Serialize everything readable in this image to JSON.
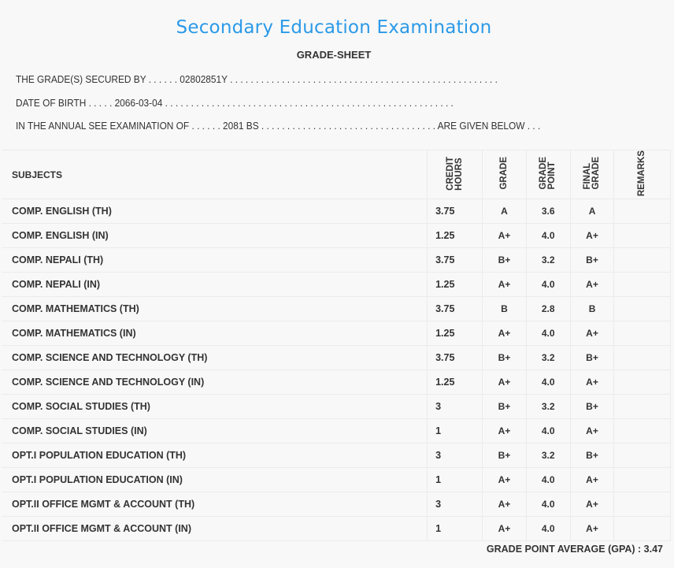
{
  "header": {
    "title": "Secondary Education Examination",
    "subtitle": "GRADE-SHEET"
  },
  "info": {
    "secured_by": "THE GRADE(S) SECURED BY . . . . . . 02802851Y . . . . . . . . . . . . . . . . . . . . . . . . . . . . . . . . . . . . . . . . . . . . . . . . . . . .",
    "dob": "DATE OF BIRTH . . . . . 2066-03-04 . . . . . . . . . . . . . . . . . . . . . . . . . . . . . . . . . . . . . . . . . . . . . . . . . . . . . . . .",
    "exam": "IN THE ANNUAL SEE EXAMINATION OF . . . . . . 2081 BS . . . . . . . . . . . . . . . . . . . . . . . . . . . . . . . . . . ARE GIVEN BELOW . . ."
  },
  "table": {
    "headers": {
      "subjects": "SUBJECTS",
      "credit_hours": "CREDIT\nHOURS",
      "grade": "GRADE",
      "grade_point": "GRADE\nPOINT",
      "final_grade": "FINAL\nGRADE",
      "remarks": "REMARKS"
    },
    "rows": [
      {
        "subject": "COMP. ENGLISH (TH)",
        "credit": "3.75",
        "grade": "A",
        "point": "3.6",
        "final": "A",
        "remarks": ""
      },
      {
        "subject": "COMP. ENGLISH (IN)",
        "credit": "1.25",
        "grade": "A+",
        "point": "4.0",
        "final": "A+",
        "remarks": ""
      },
      {
        "subject": "COMP. NEPALI (TH)",
        "credit": "3.75",
        "grade": "B+",
        "point": "3.2",
        "final": "B+",
        "remarks": ""
      },
      {
        "subject": "COMP. NEPALI (IN)",
        "credit": "1.25",
        "grade": "A+",
        "point": "4.0",
        "final": "A+",
        "remarks": ""
      },
      {
        "subject": "COMP. MATHEMATICS (TH)",
        "credit": "3.75",
        "grade": "B",
        "point": "2.8",
        "final": "B",
        "remarks": ""
      },
      {
        "subject": "COMP. MATHEMATICS (IN)",
        "credit": "1.25",
        "grade": "A+",
        "point": "4.0",
        "final": "A+",
        "remarks": ""
      },
      {
        "subject": "COMP. SCIENCE AND TECHNOLOGY (TH)",
        "credit": "3.75",
        "grade": "B+",
        "point": "3.2",
        "final": "B+",
        "remarks": ""
      },
      {
        "subject": "COMP. SCIENCE AND TECHNOLOGY (IN)",
        "credit": "1.25",
        "grade": "A+",
        "point": "4.0",
        "final": "A+",
        "remarks": ""
      },
      {
        "subject": "COMP. SOCIAL STUDIES (TH)",
        "credit": "3",
        "grade": "B+",
        "point": "3.2",
        "final": "B+",
        "remarks": ""
      },
      {
        "subject": "COMP. SOCIAL STUDIES (IN)",
        "credit": "1",
        "grade": "A+",
        "point": "4.0",
        "final": "A+",
        "remarks": ""
      },
      {
        "subject": "OPT.I POPULATION EDUCATION (TH)",
        "credit": "3",
        "grade": "B+",
        "point": "3.2",
        "final": "B+",
        "remarks": ""
      },
      {
        "subject": "OPT.I POPULATION EDUCATION (IN)",
        "credit": "1",
        "grade": "A+",
        "point": "4.0",
        "final": "A+",
        "remarks": ""
      },
      {
        "subject": "OPT.II OFFICE MGMT & ACCOUNT (TH)",
        "credit": "3",
        "grade": "A+",
        "point": "4.0",
        "final": "A+",
        "remarks": ""
      },
      {
        "subject": "OPT.II OFFICE MGMT & ACCOUNT (IN)",
        "credit": "1",
        "grade": "A+",
        "point": "4.0",
        "final": "A+",
        "remarks": ""
      }
    ]
  },
  "gpa": "GRADE POINT AVERAGE (GPA) : 3.47",
  "colors": {
    "title": "#2b9ae8",
    "text": "#333333",
    "background": "#f8f8f8"
  }
}
